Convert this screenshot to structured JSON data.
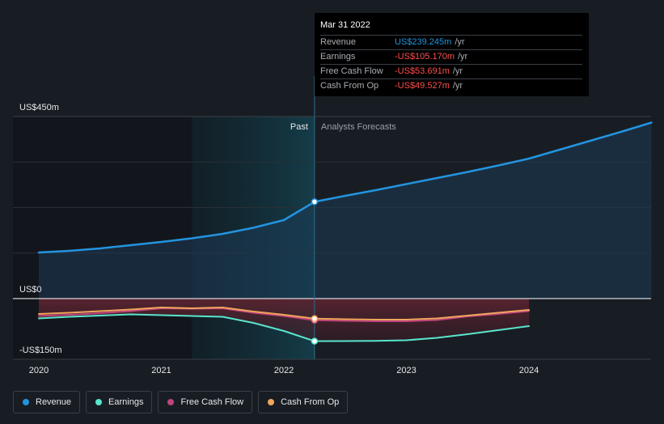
{
  "chart_data": {
    "type": "line",
    "y_axis": {
      "unit": "US$m",
      "ylim": [
        -150,
        450
      ],
      "tick_labels": [
        {
          "label": "US$450m",
          "value": 450
        },
        {
          "label": "US$0",
          "value": 0
        },
        {
          "label": "-US$150m",
          "value": -150
        }
      ]
    },
    "x_axis": {
      "tick_labels": [
        "2020",
        "2021",
        "2022",
        "2023",
        "2024"
      ],
      "tick_values": [
        2020,
        2021,
        2022,
        2023,
        2024
      ],
      "xlim": [
        2019.8,
        2025.0
      ]
    },
    "region_labels": {
      "past": "Past",
      "forecast": "Analysts Forecasts"
    },
    "divider_x": 2022.25,
    "shade_start_x": 2021.25,
    "series": [
      {
        "name": "Revenue",
        "color": "#2394df",
        "area": true,
        "points": [
          [
            2020.0,
            114
          ],
          [
            2020.25,
            118
          ],
          [
            2020.5,
            124
          ],
          [
            2020.75,
            132
          ],
          [
            2021.0,
            140
          ],
          [
            2021.25,
            149
          ],
          [
            2021.5,
            160
          ],
          [
            2021.75,
            175
          ],
          [
            2022.0,
            194
          ],
          [
            2022.25,
            239.245
          ],
          [
            2022.5,
            254
          ],
          [
            2022.75,
            268
          ],
          [
            2023.0,
            283
          ],
          [
            2023.25,
            298
          ],
          [
            2023.5,
            313
          ],
          [
            2023.75,
            329
          ],
          [
            2024.0,
            346
          ],
          [
            2024.25,
            368
          ],
          [
            2024.5,
            390
          ],
          [
            2024.75,
            412
          ],
          [
            2025.0,
            435
          ]
        ]
      },
      {
        "name": "Earnings",
        "color": "#5ae5cd",
        "points": [
          [
            2020.0,
            -49
          ],
          [
            2020.25,
            -45
          ],
          [
            2020.5,
            -42
          ],
          [
            2020.75,
            -39
          ],
          [
            2021.0,
            -41
          ],
          [
            2021.25,
            -43
          ],
          [
            2021.5,
            -45
          ],
          [
            2021.75,
            -60
          ],
          [
            2022.0,
            -80
          ],
          [
            2022.25,
            -105.17
          ],
          [
            2022.5,
            -105
          ],
          [
            2022.75,
            -104.5
          ],
          [
            2023.0,
            -103
          ],
          [
            2023.25,
            -97
          ],
          [
            2023.5,
            -88
          ],
          [
            2023.75,
            -78
          ],
          [
            2024.0,
            -68
          ]
        ]
      },
      {
        "name": "Free Cash Flow",
        "color": "#c0447d",
        "points": [
          [
            2020.0,
            -43
          ],
          [
            2020.25,
            -40
          ],
          [
            2020.5,
            -36
          ],
          [
            2020.75,
            -31
          ],
          [
            2021.0,
            -24
          ],
          [
            2021.25,
            -25
          ],
          [
            2021.5,
            -24
          ],
          [
            2021.75,
            -35
          ],
          [
            2022.0,
            -43
          ],
          [
            2022.25,
            -53.691
          ],
          [
            2022.5,
            -55
          ],
          [
            2022.75,
            -56
          ],
          [
            2023.0,
            -56
          ],
          [
            2023.25,
            -53
          ],
          [
            2023.5,
            -44
          ],
          [
            2023.75,
            -38
          ],
          [
            2024.0,
            -31
          ]
        ]
      },
      {
        "name": "Cash From Op",
        "color": "#f0a55c",
        "points": [
          [
            2020.0,
            -38
          ],
          [
            2020.25,
            -35
          ],
          [
            2020.5,
            -31
          ],
          [
            2020.75,
            -27
          ],
          [
            2021.0,
            -22
          ],
          [
            2021.25,
            -24
          ],
          [
            2021.5,
            -22
          ],
          [
            2021.75,
            -32
          ],
          [
            2022.0,
            -40
          ],
          [
            2022.25,
            -49.527
          ],
          [
            2022.5,
            -51
          ],
          [
            2022.75,
            -52
          ],
          [
            2023.0,
            -52
          ],
          [
            2023.25,
            -49
          ],
          [
            2023.5,
            -42
          ],
          [
            2023.75,
            -35
          ],
          [
            2024.0,
            -28
          ]
        ]
      }
    ],
    "grid": true,
    "legend_position": "bottom-left"
  },
  "tooltip": {
    "date": "Mar 31 2022",
    "rows": [
      {
        "name": "Revenue",
        "value": "US$239.245m",
        "unit": "/yr",
        "color": "#2394df"
      },
      {
        "name": "Earnings",
        "value": "-US$105.170m",
        "unit": "/yr",
        "color": "#ff4d4d"
      },
      {
        "name": "Free Cash Flow",
        "value": "-US$53.691m",
        "unit": "/yr",
        "color": "#ff4d4d"
      },
      {
        "name": "Cash From Op",
        "value": "-US$49.527m",
        "unit": "/yr",
        "color": "#ff4d4d"
      }
    ]
  },
  "legend": [
    {
      "label": "Revenue",
      "color": "#2394df"
    },
    {
      "label": "Earnings",
      "color": "#5ae5cd"
    },
    {
      "label": "Free Cash Flow",
      "color": "#c0447d"
    },
    {
      "label": "Cash From Op",
      "color": "#f0a55c"
    }
  ]
}
